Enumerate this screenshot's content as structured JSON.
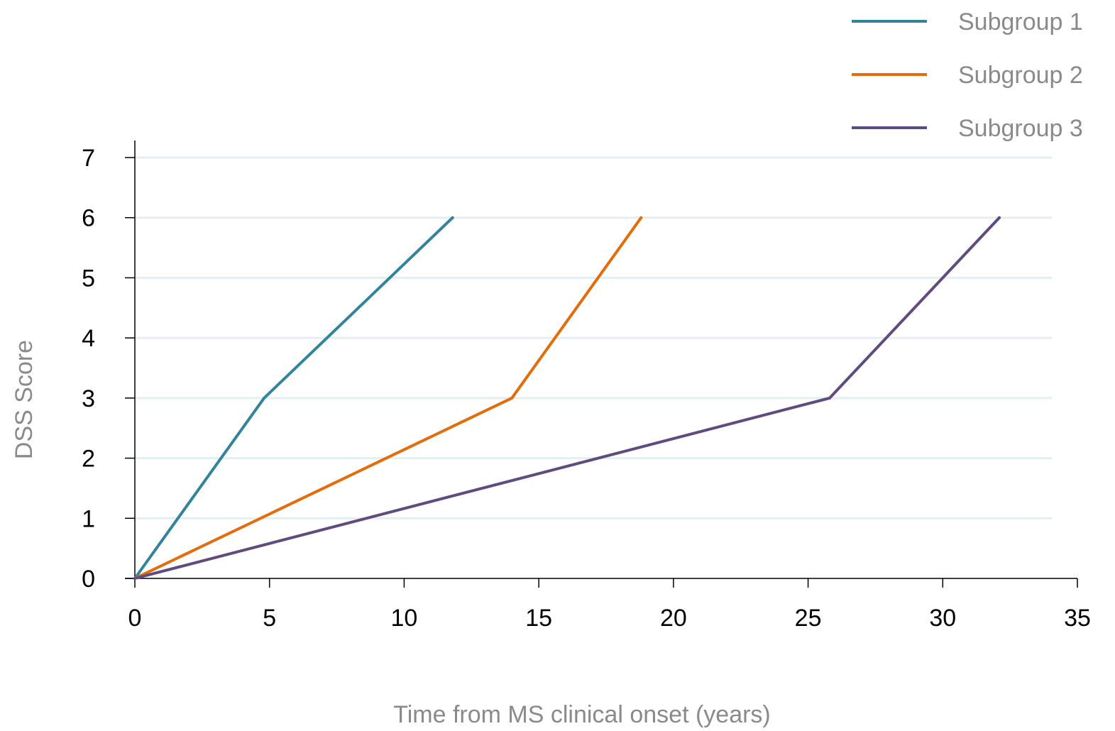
{
  "chart_data": {
    "type": "line",
    "title": "",
    "xlabel": "Time from MS clinical onset (years)",
    "ylabel": "DSS Score",
    "xlim": [
      0,
      35
    ],
    "ylim": [
      0,
      7
    ],
    "x_ticks": [
      0,
      5,
      10,
      15,
      20,
      25,
      30,
      35
    ],
    "y_ticks": [
      0,
      1,
      2,
      3,
      4,
      5,
      6,
      7
    ],
    "grid": "horizontal",
    "legend_position": "top-right",
    "series": [
      {
        "name": "Subgroup 1",
        "color": "#31849B",
        "points": [
          [
            0,
            0
          ],
          [
            4.8,
            3
          ],
          [
            11.8,
            6
          ]
        ]
      },
      {
        "name": "Subgroup 2",
        "color": "#E46C0A",
        "points": [
          [
            0,
            0
          ],
          [
            14,
            3
          ],
          [
            18.8,
            6
          ]
        ]
      },
      {
        "name": "Subgroup 3",
        "color": "#5F4B7F",
        "points": [
          [
            0,
            0
          ],
          [
            25.8,
            3
          ],
          [
            32.1,
            6
          ]
        ]
      }
    ]
  }
}
